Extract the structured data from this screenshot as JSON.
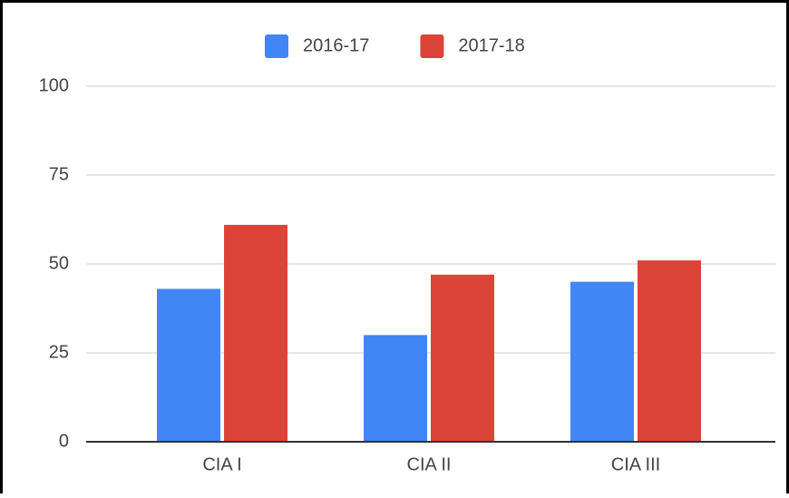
{
  "chart_data": {
    "type": "bar",
    "categories": [
      "CIA I",
      "CIA II",
      "CIA III"
    ],
    "series": [
      {
        "name": "2016-17",
        "color": "#4285f4",
        "values": [
          43,
          30,
          45
        ]
      },
      {
        "name": "2017-18",
        "color": "#db4437",
        "values": [
          61,
          47,
          51
        ]
      }
    ],
    "ylim": [
      0,
      100
    ],
    "yticks": [
      0,
      25,
      50,
      75,
      100
    ],
    "grid": true,
    "legend": "top"
  }
}
